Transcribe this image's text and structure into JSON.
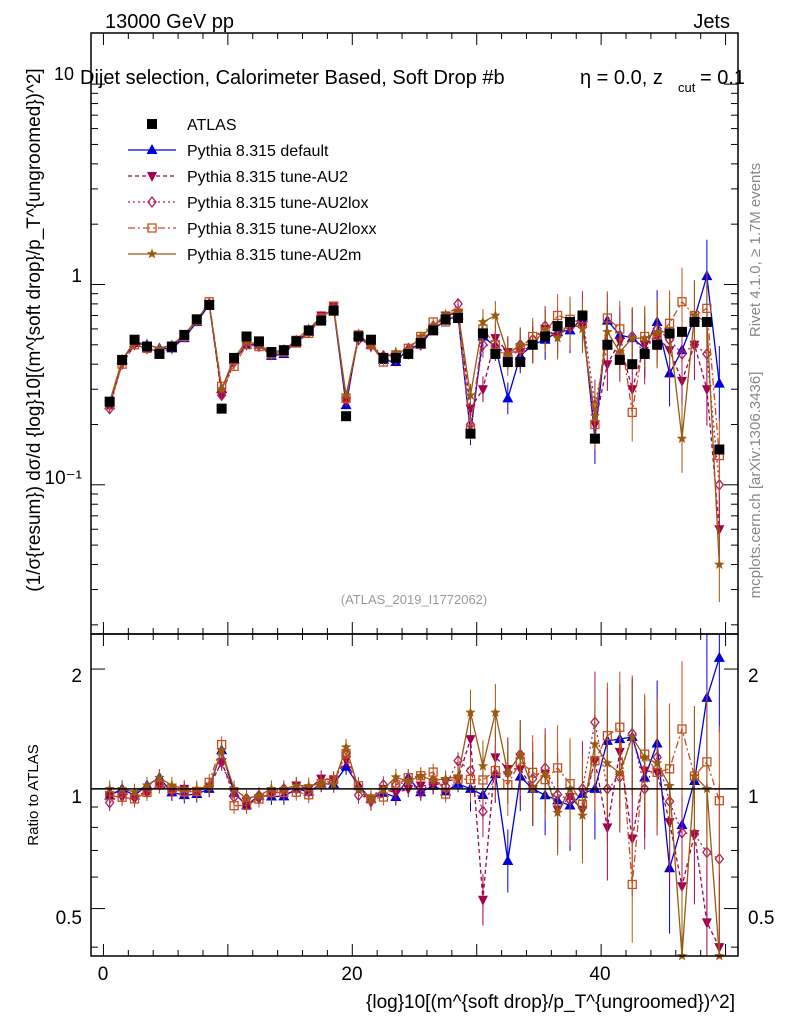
{
  "header": {
    "energy": "13000 GeV pp",
    "category": "Jets",
    "selection": "Dijet selection, Calorimeter Based, Soft Drop #b",
    "eta_label": "η = 0.0, z",
    "zcut_sub": "cut",
    "zcut_val": " = 0.1",
    "partial_label": "10"
  },
  "side_labels": {
    "rivet": "Rivet 4.1.0, ≥ 1.7M events",
    "mcplots": "mcplots.cern.ch [arXiv:1306.3436]"
  },
  "watermark": "(ATLAS_2019_I1772062)",
  "axes": {
    "ylabel_main": "(1/σ{resum}) dσ/d {log}10[(m^{soft drop}/p_T^{ungroomed})^2]",
    "ylabel_ratio": "Ratio to ATLAS",
    "xlabel": "{log}10[(m^{soft drop}/p_T^{ungroomed})^2]",
    "x_ticks": [
      "0",
      "20",
      "40"
    ],
    "y_ticks_main": [
      "10⁻¹",
      "1"
    ],
    "y_ticks_ratio": [
      "0.5",
      "1",
      "2"
    ]
  },
  "legend": [
    {
      "name": "ATLAS",
      "color": "#000000",
      "marker": "square"
    },
    {
      "name": "Pythia 8.315 default",
      "color": "#0000dd",
      "marker": "triangle-up"
    },
    {
      "name": "Pythia 8.315 tune-AU2",
      "color": "#a0004c",
      "marker": "triangle-down"
    },
    {
      "name": "Pythia 8.315 tune-AU2lox",
      "color": "#b01c5c",
      "marker": "diamond"
    },
    {
      "name": "Pythia 8.315 tune-AU2loxx",
      "color": "#c8501e",
      "marker": "open-square"
    },
    {
      "name": "Pythia 8.315 tune-AU2m",
      "color": "#9a5a10",
      "marker": "star"
    }
  ],
  "chart_data": {
    "type": "line",
    "title": "Dijet selection, Calorimeter Based, Soft Drop #b",
    "xlim": [
      -1,
      51
    ],
    "ylim_main": [
      0.018,
      18
    ],
    "ylim_ratio": [
      0.38,
      2.45
    ],
    "y_scale": "log",
    "x": [
      0.5,
      1.5,
      2.5,
      3.5,
      4.5,
      5.5,
      6.5,
      7.5,
      8.5,
      9.5,
      10.5,
      11.5,
      12.5,
      13.5,
      14.5,
      15.5,
      16.5,
      17.5,
      18.5,
      19.5,
      20.5,
      21.5,
      22.5,
      23.5,
      24.5,
      25.5,
      26.5,
      27.5,
      28.5,
      29.5,
      30.5,
      31.5,
      32.5,
      33.5,
      34.5,
      35.5,
      36.5,
      37.5,
      38.5,
      39.5,
      40.5,
      41.5,
      42.5,
      43.5,
      44.5,
      45.5,
      46.5,
      47.5,
      48.5,
      49.5
    ],
    "atlas": [
      0.26,
      0.42,
      0.53,
      0.49,
      0.45,
      0.49,
      0.56,
      0.67,
      0.79,
      0.24,
      0.43,
      0.55,
      0.52,
      0.46,
      0.47,
      0.52,
      0.59,
      0.66,
      0.74,
      0.22,
      0.55,
      0.53,
      0.43,
      0.43,
      0.45,
      0.51,
      0.59,
      0.67,
      0.68,
      0.18,
      0.57,
      0.45,
      0.41,
      0.41,
      0.5,
      0.55,
      0.62,
      0.65,
      0.7,
      0.17,
      0.5,
      0.42,
      0.4,
      0.45,
      0.5,
      0.57,
      0.58,
      0.65,
      0.65,
      0.15
    ],
    "series": [
      {
        "name": "Pythia 8.315 default",
        "values": [
          0.25,
          0.42,
          0.51,
          0.5,
          0.48,
          0.48,
          0.54,
          0.65,
          0.79,
          0.3,
          0.42,
          0.5,
          0.5,
          0.44,
          0.45,
          0.52,
          0.58,
          0.68,
          0.76,
          0.25,
          0.56,
          0.5,
          0.42,
          0.41,
          0.48,
          0.5,
          0.6,
          0.66,
          0.7,
          0.18,
          0.55,
          0.49,
          0.27,
          0.44,
          0.5,
          0.53,
          0.58,
          0.59,
          0.68,
          0.17,
          0.66,
          0.56,
          0.54,
          0.48,
          0.65,
          0.36,
          0.47,
          0.68,
          1.1,
          0.32
        ]
      },
      {
        "name": "Pythia 8.315 tune-AU2",
        "values": [
          0.25,
          0.4,
          0.5,
          0.48,
          0.46,
          0.48,
          0.56,
          0.66,
          0.8,
          0.28,
          0.42,
          0.5,
          0.49,
          0.45,
          0.46,
          0.53,
          0.59,
          0.7,
          0.78,
          0.26,
          0.55,
          0.49,
          0.43,
          0.42,
          0.45,
          0.52,
          0.6,
          0.7,
          0.72,
          0.24,
          0.3,
          0.54,
          0.46,
          0.46,
          0.5,
          0.6,
          0.55,
          0.62,
          0.62,
          0.2,
          0.4,
          0.52,
          0.3,
          0.5,
          0.55,
          0.47,
          0.33,
          0.5,
          0.3,
          0.06
        ]
      },
      {
        "name": "Pythia 8.315 tune-AU2lox",
        "values": [
          0.24,
          0.41,
          0.51,
          0.48,
          0.46,
          0.49,
          0.55,
          0.66,
          0.8,
          0.28,
          0.41,
          0.52,
          0.5,
          0.45,
          0.47,
          0.52,
          0.58,
          0.68,
          0.77,
          0.27,
          0.53,
          0.5,
          0.44,
          0.44,
          0.47,
          0.5,
          0.62,
          0.68,
          0.8,
          0.2,
          0.5,
          0.49,
          0.45,
          0.5,
          0.53,
          0.62,
          0.6,
          0.61,
          0.7,
          0.25,
          0.5,
          0.45,
          0.55,
          0.45,
          0.6,
          0.53,
          0.45,
          0.5,
          0.45,
          0.1
        ]
      },
      {
        "name": "Pythia 8.315 tune-AU2loxx",
        "values": [
          0.25,
          0.4,
          0.5,
          0.48,
          0.46,
          0.49,
          0.55,
          0.66,
          0.82,
          0.31,
          0.39,
          0.5,
          0.49,
          0.45,
          0.46,
          0.51,
          0.57,
          0.68,
          0.78,
          0.27,
          0.56,
          0.5,
          0.41,
          0.44,
          0.48,
          0.55,
          0.65,
          0.65,
          0.72,
          0.19,
          0.6,
          0.5,
          0.42,
          0.48,
          0.55,
          0.58,
          0.7,
          0.67,
          0.64,
          0.2,
          0.68,
          0.6,
          0.23,
          0.55,
          0.55,
          0.64,
          0.82,
          0.7,
          0.76,
          0.14
        ]
      },
      {
        "name": "Pythia 8.315 tune-AU2m",
        "values": [
          0.26,
          0.42,
          0.52,
          0.5,
          0.48,
          0.5,
          0.56,
          0.67,
          0.8,
          0.3,
          0.43,
          0.52,
          0.5,
          0.46,
          0.47,
          0.53,
          0.6,
          0.68,
          0.76,
          0.28,
          0.55,
          0.5,
          0.43,
          0.46,
          0.47,
          0.55,
          0.62,
          0.71,
          0.73,
          0.28,
          0.65,
          0.7,
          0.45,
          0.5,
          0.5,
          0.6,
          0.54,
          0.65,
          0.6,
          0.22,
          0.58,
          0.46,
          0.54,
          0.54,
          0.58,
          0.58,
          0.17,
          0.7,
          0.65,
          0.04
        ]
      }
    ]
  }
}
